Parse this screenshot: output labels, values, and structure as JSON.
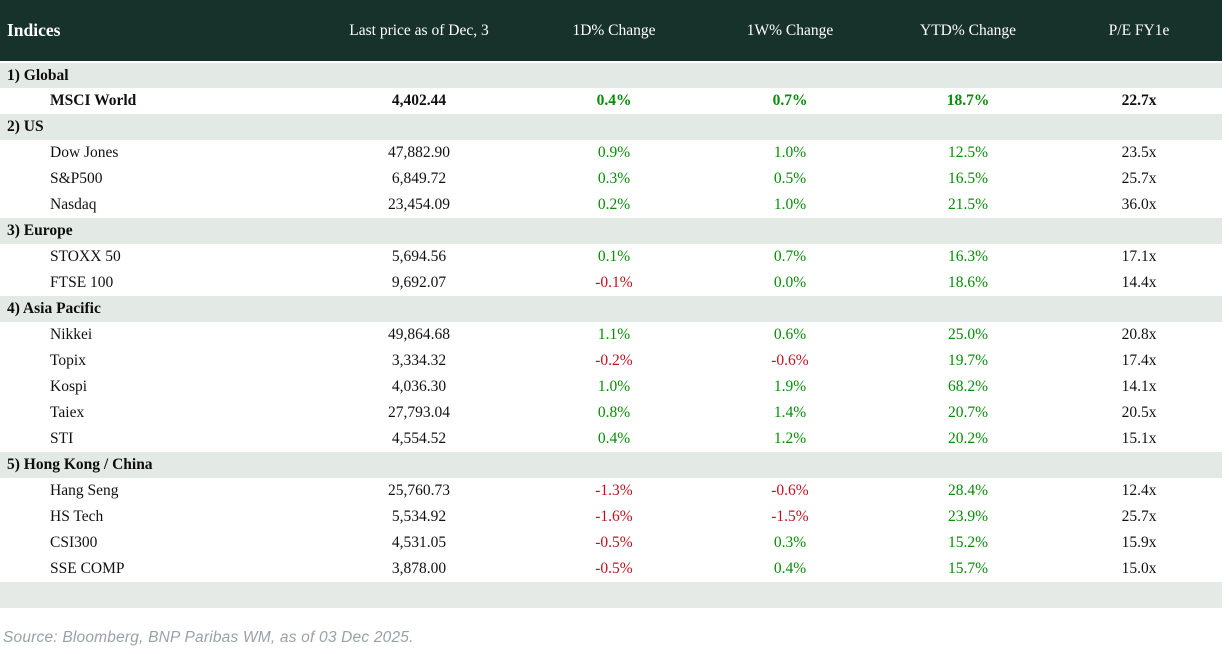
{
  "chart_data": {
    "type": "table",
    "title": "Indices",
    "columns": [
      "Indices",
      "Last price as of Dec, 3",
      "1D% Change",
      "1W% Change",
      "YTD% Change",
      "P/E FY1e"
    ],
    "sections": [
      {
        "label": "1) Global",
        "rows": [
          {
            "name": "MSCI World",
            "price": "4,402.44",
            "d1": "0.4%",
            "w1": "0.7%",
            "ytd": "18.7%",
            "pe": "22.7x",
            "bold": true
          }
        ]
      },
      {
        "label": "2) US",
        "rows": [
          {
            "name": "Dow Jones",
            "price": "47,882.90",
            "d1": "0.9%",
            "w1": "1.0%",
            "ytd": "12.5%",
            "pe": "23.5x"
          },
          {
            "name": "S&P500",
            "price": "6,849.72",
            "d1": "0.3%",
            "w1": "0.5%",
            "ytd": "16.5%",
            "pe": "25.7x"
          },
          {
            "name": "Nasdaq",
            "price": "23,454.09",
            "d1": "0.2%",
            "w1": "1.0%",
            "ytd": "21.5%",
            "pe": "36.0x"
          }
        ]
      },
      {
        "label": "3) Europe",
        "rows": [
          {
            "name": "STOXX 50",
            "price": "5,694.56",
            "d1": "0.1%",
            "w1": "0.7%",
            "ytd": "16.3%",
            "pe": "17.1x"
          },
          {
            "name": "FTSE 100",
            "price": "9,692.07",
            "d1": "-0.1%",
            "w1": "0.0%",
            "ytd": "18.6%",
            "pe": "14.4x"
          }
        ]
      },
      {
        "label": "4) Asia Pacific",
        "rows": [
          {
            "name": "Nikkei",
            "price": "49,864.68",
            "d1": "1.1%",
            "w1": "0.6%",
            "ytd": "25.0%",
            "pe": "20.8x"
          },
          {
            "name": "Topix",
            "price": "3,334.32",
            "d1": "-0.2%",
            "w1": "-0.6%",
            "ytd": "19.7%",
            "pe": "17.4x"
          },
          {
            "name": "Kospi",
            "price": "4,036.30",
            "d1": "1.0%",
            "w1": "1.9%",
            "ytd": "68.2%",
            "pe": "14.1x"
          },
          {
            "name": "Taiex",
            "price": "27,793.04",
            "d1": "0.8%",
            "w1": "1.4%",
            "ytd": "20.7%",
            "pe": "20.5x"
          },
          {
            "name": "STI",
            "price": "4,554.52",
            "d1": "0.4%",
            "w1": "1.2%",
            "ytd": "20.2%",
            "pe": "15.1x"
          }
        ]
      },
      {
        "label": "5) Hong Kong / China",
        "rows": [
          {
            "name": "Hang Seng",
            "price": "25,760.73",
            "d1": "-1.3%",
            "w1": "-0.6%",
            "ytd": "28.4%",
            "pe": "12.4x"
          },
          {
            "name": "HS Tech",
            "price": "5,534.92",
            "d1": "-1.6%",
            "w1": "-1.5%",
            "ytd": "23.9%",
            "pe": "25.7x"
          },
          {
            "name": "CSI300",
            "price": "4,531.05",
            "d1": "-0.5%",
            "w1": "0.3%",
            "ytd": "15.2%",
            "pe": "15.9x"
          },
          {
            "name": "SSE COMP",
            "price": "3,878.00",
            "d1": "-0.5%",
            "w1": "0.4%",
            "ytd": "15.7%",
            "pe": "15.0x"
          }
        ]
      }
    ],
    "layout": {
      "grid": false,
      "positive_change_color": "#068c06",
      "negative_change_color": "#c0111f",
      "header_background": "#17312b",
      "section_row_background": "#e3e9e5"
    }
  },
  "footer": {
    "source": "Source: Bloomberg, BNP Paribas WM, as of 03 Dec 2025."
  }
}
